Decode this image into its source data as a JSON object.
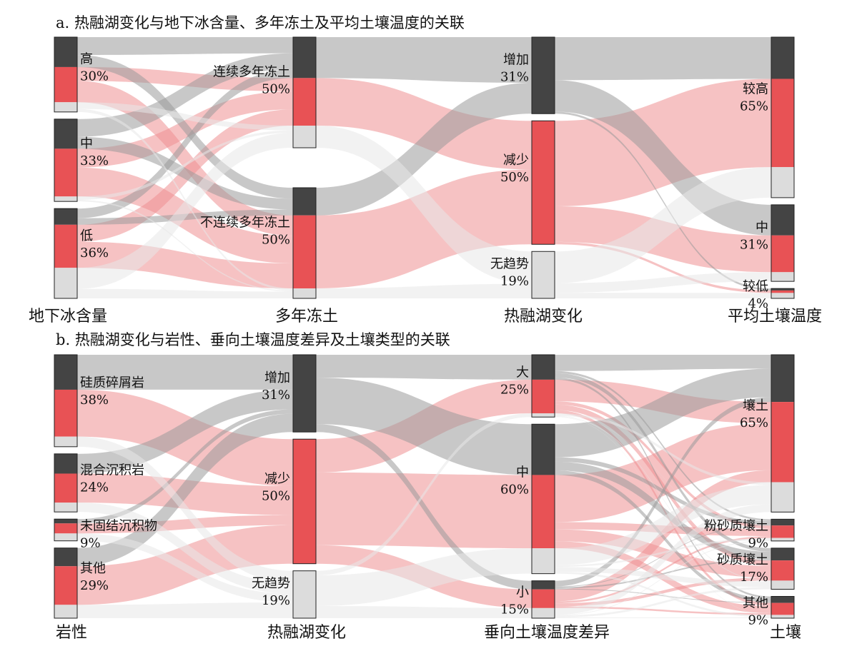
{
  "colors": {
    "increase": "#444444",
    "decrease": "#e85255",
    "no_trend": "#dcdcdc",
    "flow_increase": "#9a9a9a",
    "flow_decrease": "#ef8f92",
    "flow_no_trend": "#e8e8e8"
  },
  "chart_data": [
    {
      "type": "alluvial",
      "title": "a. 热融湖变化与地下冰含量、多年冻土及平均土壤温度的关联",
      "axes": [
        {
          "label": "地下冰含量",
          "categories": [
            {
              "name": "高",
              "pct": "30%",
              "composition": [
                0.4,
                0.47,
                0.13
              ]
            },
            {
              "name": "中",
              "pct": "33%",
              "composition": [
                0.36,
                0.58,
                0.06
              ]
            },
            {
              "name": "低",
              "pct": "36%",
              "composition": [
                0.18,
                0.48,
                0.34
              ]
            }
          ]
        },
        {
          "label": "多年冻土",
          "categories": [
            {
              "name": "连续多年冻土",
              "pct": "50%",
              "composition": [
                0.37,
                0.43,
                0.2
              ]
            },
            {
              "name": "不连续多年冻土",
              "pct": "50%",
              "composition": [
                0.25,
                0.66,
                0.09
              ]
            }
          ]
        },
        {
          "label": "热融湖变化",
          "categories": [
            {
              "name": "增加",
              "pct": "31%",
              "composition": [
                1,
                0,
                0
              ]
            },
            {
              "name": "减少",
              "pct": "50%",
              "composition": [
                0,
                1,
                0
              ]
            },
            {
              "name": "无趋势",
              "pct": "19%",
              "composition": [
                0,
                0,
                1
              ]
            }
          ]
        },
        {
          "label": "平均土壤温度",
          "categories": [
            {
              "name": "较高",
              "pct": "65%",
              "composition": [
                0.26,
                0.55,
                0.19
              ]
            },
            {
              "name": "中",
              "pct": "31%",
              "composition": [
                0.4,
                0.48,
                0.12
              ]
            },
            {
              "name": "较低",
              "pct": "4%",
              "composition": [
                0.2,
                0.25,
                0.55
              ]
            }
          ]
        }
      ]
    },
    {
      "type": "alluvial",
      "title": "b. 热融湖变化与岩性、垂向土壤温度差异及土壤类型的关联",
      "axes": [
        {
          "label": "岩性",
          "categories": [
            {
              "name": "硅质碎屑岩",
              "pct": "38%",
              "composition": [
                0.38,
                0.51,
                0.11
              ]
            },
            {
              "name": "混合沉积岩",
              "pct": "24%",
              "composition": [
                0.34,
                0.5,
                0.16
              ]
            },
            {
              "name": "未固结沉积物",
              "pct": "9%",
              "composition": [
                0.2,
                0.46,
                0.34
              ]
            },
            {
              "name": "其他",
              "pct": "29%",
              "composition": [
                0.26,
                0.55,
                0.19
              ]
            }
          ]
        },
        {
          "label": "热融湖变化",
          "categories": [
            {
              "name": "增加",
              "pct": "31%",
              "composition": [
                1,
                0,
                0
              ]
            },
            {
              "name": "减少",
              "pct": "50%",
              "composition": [
                0,
                1,
                0
              ]
            },
            {
              "name": "无趋势",
              "pct": "19%",
              "composition": [
                0,
                0,
                1
              ]
            }
          ]
        },
        {
          "label": "垂向土壤温度差异",
          "categories": [
            {
              "name": "大",
              "pct": "25%",
              "composition": [
                0.4,
                0.54,
                0.06
              ]
            },
            {
              "name": "中",
              "pct": "60%",
              "composition": [
                0.34,
                0.49,
                0.17
              ]
            },
            {
              "name": "小",
              "pct": "15%",
              "composition": [
                0.23,
                0.5,
                0.27
              ]
            }
          ]
        },
        {
          "label": "土壤",
          "categories": [
            {
              "name": "壤土",
              "pct": "65%",
              "composition": [
                0.3,
                0.51,
                0.19
              ]
            },
            {
              "name": "粉砂质壤土",
              "pct": "9%",
              "composition": [
                0.29,
                0.57,
                0.14
              ]
            },
            {
              "name": "砂质壤土",
              "pct": "17%",
              "composition": [
                0.3,
                0.49,
                0.21
              ]
            },
            {
              "name": "其他",
              "pct": "9%",
              "composition": [
                0.3,
                0.55,
                0.15
              ]
            }
          ]
        }
      ]
    }
  ]
}
